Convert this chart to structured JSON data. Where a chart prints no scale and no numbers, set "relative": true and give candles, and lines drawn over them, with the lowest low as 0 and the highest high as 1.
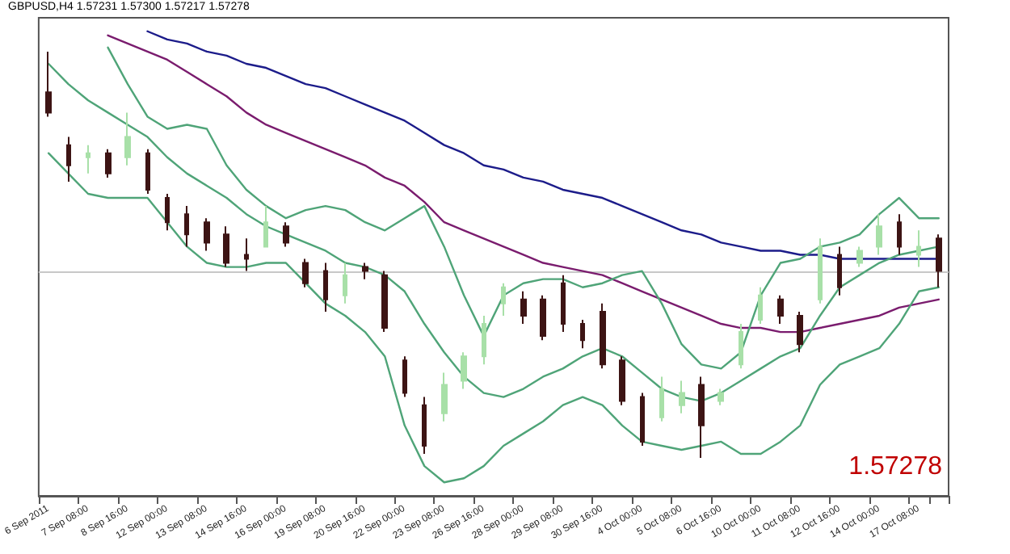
{
  "chart_data": {
    "type": "candlestick",
    "title": "GBPUSD,H4 1.57231 1.57300 1.57217 1.57278",
    "relative": true,
    "categories": [
      "6 Sep 2011",
      null,
      "7 Sep 08:00",
      null,
      "8 Sep 16:00",
      null,
      "12 Sep 00:00",
      null,
      "13 Sep 08:00",
      null,
      "14 Sep 16:00",
      null,
      "16 Sep 00:00",
      null,
      "19 Sep 08:00",
      null,
      "20 Sep 16:00",
      null,
      "22 Sep 00:00",
      null,
      "23 Sep 08:00",
      null,
      "26 Sep 16:00",
      null,
      "28 Sep 00:00",
      null,
      "29 Sep 08:00",
      null,
      "30 Sep 16:00",
      null,
      "4 Oct 00:00",
      null,
      "5 Oct 08:00",
      null,
      "6 Oct 16:00",
      null,
      "10 Oct 00:00",
      null,
      "11 Oct 08:00",
      null,
      "12 Oct 16:00",
      null,
      "14 Oct 00:00",
      null,
      "17 Oct 08:00",
      null
    ],
    "ohlc": [
      [
        0.9,
        1.0,
        0.84,
        0.85
      ],
      [
        0.77,
        0.79,
        0.68,
        0.72
      ],
      [
        0.74,
        0.77,
        0.7,
        0.75
      ],
      [
        0.75,
        0.76,
        0.69,
        0.7
      ],
      [
        0.74,
        0.85,
        0.72,
        0.79
      ],
      [
        0.75,
        0.76,
        0.65,
        0.66
      ],
      [
        0.64,
        0.65,
        0.56,
        0.58
      ],
      [
        0.6,
        0.62,
        0.52,
        0.55
      ],
      [
        0.58,
        0.59,
        0.51,
        0.53
      ],
      [
        0.55,
        0.57,
        0.47,
        0.48
      ],
      [
        0.5,
        0.54,
        0.46,
        0.49
      ],
      [
        0.52,
        0.62,
        0.52,
        0.58
      ],
      [
        0.57,
        0.58,
        0.52,
        0.53
      ],
      [
        0.48,
        0.49,
        0.42,
        0.43
      ],
      [
        0.46,
        0.48,
        0.36,
        0.39
      ],
      [
        0.4,
        0.48,
        0.38,
        0.45
      ],
      [
        0.47,
        0.48,
        0.44,
        0.46
      ],
      [
        0.45,
        0.46,
        0.31,
        0.32
      ],
      [
        0.24,
        0.25,
        0.15,
        0.16
      ],
      [
        0.13,
        0.15,
        0.01,
        0.03
      ],
      [
        0.11,
        0.21,
        0.09,
        0.18
      ],
      [
        0.19,
        0.26,
        0.17,
        0.25
      ],
      [
        0.25,
        0.35,
        0.23,
        0.33
      ],
      [
        0.38,
        0.43,
        0.35,
        0.42
      ],
      [
        0.39,
        0.41,
        0.33,
        0.35
      ],
      [
        0.39,
        0.4,
        0.29,
        0.3
      ],
      [
        0.43,
        0.45,
        0.31,
        0.33
      ],
      [
        0.33,
        0.34,
        0.27,
        0.29
      ],
      [
        0.36,
        0.38,
        0.22,
        0.23
      ],
      [
        0.24,
        0.25,
        0.13,
        0.14
      ],
      [
        0.15,
        0.16,
        0.03,
        0.04
      ],
      [
        0.1,
        0.2,
        0.09,
        0.17
      ],
      [
        0.13,
        0.19,
        0.11,
        0.16
      ],
      [
        0.18,
        0.2,
        0.0,
        0.08
      ],
      [
        0.14,
        0.17,
        0.13,
        0.16
      ],
      [
        0.23,
        0.33,
        0.22,
        0.31
      ],
      [
        0.34,
        0.42,
        0.33,
        0.4
      ],
      [
        0.39,
        0.4,
        0.33,
        0.35
      ],
      [
        0.35,
        0.36,
        0.26,
        0.28
      ],
      [
        0.39,
        0.54,
        0.38,
        0.52
      ],
      [
        0.5,
        0.52,
        0.4,
        0.42
      ],
      [
        0.48,
        0.52,
        0.47,
        0.51
      ],
      [
        0.52,
        0.6,
        0.5,
        0.57
      ],
      [
        0.58,
        0.6,
        0.5,
        0.52
      ],
      [
        0.5,
        0.56,
        0.47,
        0.52
      ],
      [
        0.54,
        0.55,
        0.42,
        0.46
      ]
    ],
    "colors": [
      "#3d1414",
      "#3d1414",
      "#a8e0a8",
      "#3d1414",
      "#a8e0a8",
      "#3d1414",
      "#3d1414",
      "#3d1414",
      "#3d1414",
      "#3d1414",
      "#3d1414",
      "#a8e0a8",
      "#3d1414",
      "#3d1414",
      "#3d1414",
      "#a8e0a8",
      "#3d1414",
      "#3d1414",
      "#3d1414",
      "#3d1414",
      "#a8e0a8",
      "#a8e0a8",
      "#a8e0a8",
      "#a8e0a8",
      "#3d1414",
      "#3d1414",
      "#3d1414",
      "#3d1414",
      "#3d1414",
      "#3d1414",
      "#3d1414",
      "#a8e0a8",
      "#a8e0a8",
      "#3d1414",
      "#a8e0a8",
      "#a8e0a8",
      "#a8e0a8",
      "#3d1414",
      "#3d1414",
      "#a8e0a8",
      "#3d1414",
      "#a8e0a8",
      "#a8e0a8",
      "#3d1414",
      "#a8e0a8",
      "#3d1414"
    ],
    "series": [
      {
        "type": "line",
        "color": "#1c1c8a",
        "values": [
          null,
          null,
          null,
          null,
          null,
          1.05,
          1.03,
          1.02,
          1.0,
          0.99,
          0.97,
          0.96,
          0.94,
          0.92,
          0.91,
          0.89,
          0.87,
          0.85,
          0.83,
          0.8,
          0.77,
          0.75,
          0.72,
          0.71,
          0.69,
          0.68,
          0.66,
          0.65,
          0.64,
          0.62,
          0.6,
          0.58,
          0.56,
          0.55,
          0.53,
          0.52,
          0.51,
          0.51,
          0.5,
          0.5,
          0.49,
          0.49,
          0.49,
          0.49,
          0.49,
          0.49
        ]
      },
      {
        "type": "line",
        "color": "#7a1c6e",
        "values": [
          null,
          null,
          null,
          1.04,
          1.02,
          1.0,
          0.98,
          0.95,
          0.92,
          0.89,
          0.85,
          0.82,
          0.8,
          0.78,
          0.76,
          0.74,
          0.72,
          0.69,
          0.67,
          0.63,
          0.58,
          0.56,
          0.54,
          0.52,
          0.5,
          0.48,
          0.47,
          0.46,
          0.45,
          0.43,
          0.41,
          0.39,
          0.37,
          0.35,
          0.33,
          0.32,
          0.32,
          0.31,
          0.31,
          0.32,
          0.33,
          0.34,
          0.35,
          0.37,
          0.38,
          0.39
        ]
      },
      {
        "type": "line",
        "color": "#4fa478",
        "values": [
          null,
          null,
          null,
          1.01,
          0.92,
          0.84,
          0.81,
          0.82,
          0.81,
          0.72,
          0.66,
          0.62,
          0.59,
          0.61,
          0.62,
          0.61,
          0.58,
          0.56,
          0.59,
          0.62,
          0.52,
          0.4,
          0.3,
          0.4,
          0.43,
          0.44,
          0.44,
          0.42,
          0.43,
          0.45,
          0.46,
          0.38,
          0.28,
          0.23,
          0.22,
          0.26,
          0.4,
          0.48,
          0.49,
          0.52,
          0.53,
          0.55,
          0.6,
          0.64,
          0.59,
          0.59
        ]
      },
      {
        "type": "line",
        "color": "#4fa478",
        "values": [
          0.97,
          0.92,
          0.88,
          0.85,
          0.82,
          0.79,
          0.74,
          0.7,
          0.67,
          0.64,
          0.6,
          0.57,
          0.55,
          0.53,
          0.51,
          0.48,
          0.47,
          0.45,
          0.41,
          0.33,
          0.26,
          0.2,
          0.16,
          0.15,
          0.17,
          0.2,
          0.22,
          0.25,
          0.27,
          0.25,
          0.21,
          0.17,
          0.15,
          0.14,
          0.16,
          0.19,
          0.22,
          0.25,
          0.27,
          0.35,
          0.42,
          0.45,
          0.48,
          0.5,
          0.51,
          0.52
        ]
      },
      {
        "type": "line",
        "color": "#4fa478",
        "values": [
          0.75,
          0.7,
          0.65,
          0.64,
          0.64,
          0.64,
          0.58,
          0.52,
          0.48,
          0.47,
          0.47,
          0.48,
          0.48,
          0.43,
          0.38,
          0.35,
          0.31,
          0.25,
          0.08,
          -0.02,
          -0.06,
          -0.05,
          -0.02,
          0.03,
          0.06,
          0.09,
          0.13,
          0.15,
          0.13,
          0.08,
          0.04,
          0.03,
          0.02,
          0.03,
          0.04,
          0.01,
          0.01,
          0.04,
          0.08,
          0.18,
          0.23,
          0.25,
          0.27,
          0.33,
          0.41,
          0.42
        ]
      }
    ],
    "ref_lines": [
      {
        "axis": "y",
        "value": 0.46,
        "color": "#c8c8c8"
      }
    ],
    "annotations": [
      "1.57278"
    ]
  }
}
